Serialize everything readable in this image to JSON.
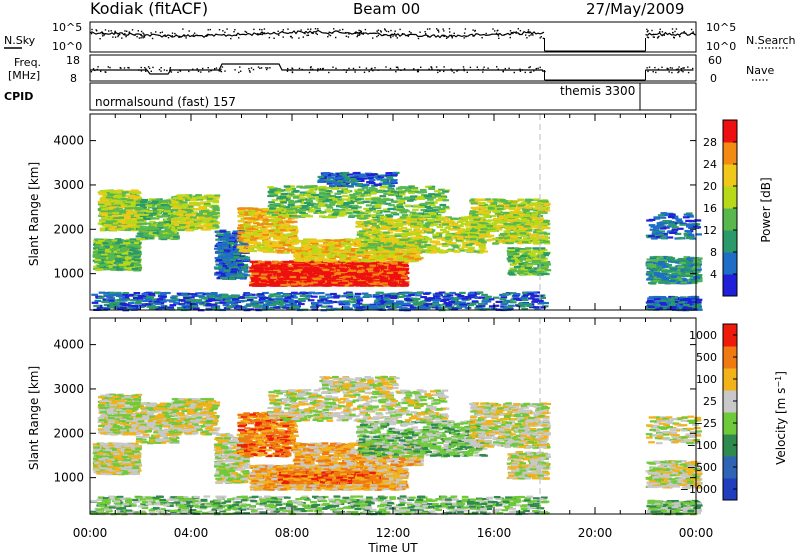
{
  "header": {
    "station": "Kodiak (fitACF)",
    "beam": "Beam 00",
    "date": "27/May/2009"
  },
  "noise_panel": {
    "left_label": "N.Sky",
    "left_ticks": [
      "10^5",
      "10^0"
    ],
    "right_ticks": [
      "10^5",
      "10^0"
    ],
    "right_label": "N.Search"
  },
  "freq_panel": {
    "left_label_1": "Freq.",
    "left_label_2": "[MHz]",
    "left_ticks": [
      "18",
      "8"
    ],
    "right_ticks": [
      "60",
      "0"
    ],
    "right_label": "Nave"
  },
  "cpid_panel": {
    "label": "CPID",
    "mode_1": "normalsound (fast) 157",
    "mode_2": "themis 3300"
  },
  "x_axis": {
    "ticks": [
      "00:00",
      "04:00",
      "08:00",
      "12:00",
      "16:00",
      "20:00",
      "00:00"
    ],
    "label": "Time UT"
  },
  "chart_data": [
    {
      "type": "heatmap",
      "panel": "power",
      "ylabel": "Slant Range [km]",
      "y_ticks": [
        "1000",
        "2000",
        "3000",
        "4000"
      ],
      "ylim": [
        180,
        4600
      ],
      "xlim_hours": [
        0,
        24
      ],
      "colorbar_label": "Power [dB]",
      "colorbar_ticks": [
        "4",
        "8",
        "12",
        "16",
        "20",
        "24",
        "28"
      ],
      "colorbar_colors": [
        "#2020d8",
        "#1e6ec8",
        "#2a9a6a",
        "#58b84e",
        "#b8d81a",
        "#f0c81a",
        "#f28a14",
        "#ee1010"
      ],
      "data_gap_hours": [
        18,
        22
      ]
    },
    {
      "type": "heatmap",
      "panel": "velocity",
      "ylabel": "Slant Range [km]",
      "y_ticks": [
        "1000",
        "2000",
        "3000",
        "4000"
      ],
      "ylim": [
        180,
        4600
      ],
      "xlim_hours": [
        0,
        24
      ],
      "colorbar_label": "Velocity [m s^-1]",
      "colorbar_ticks": [
        "1000",
        "500",
        "100",
        "25",
        "−25",
        "−100",
        "−500",
        "−1000"
      ],
      "colorbar_colors": [
        "#1f3dbd",
        "#2e63b6",
        "#2f8a4d",
        "#6fca3a",
        "#c8c8c8",
        "#f2b21a",
        "#f07a12",
        "#ee1a0a"
      ],
      "data_gap_hours": [
        18,
        22
      ]
    }
  ]
}
